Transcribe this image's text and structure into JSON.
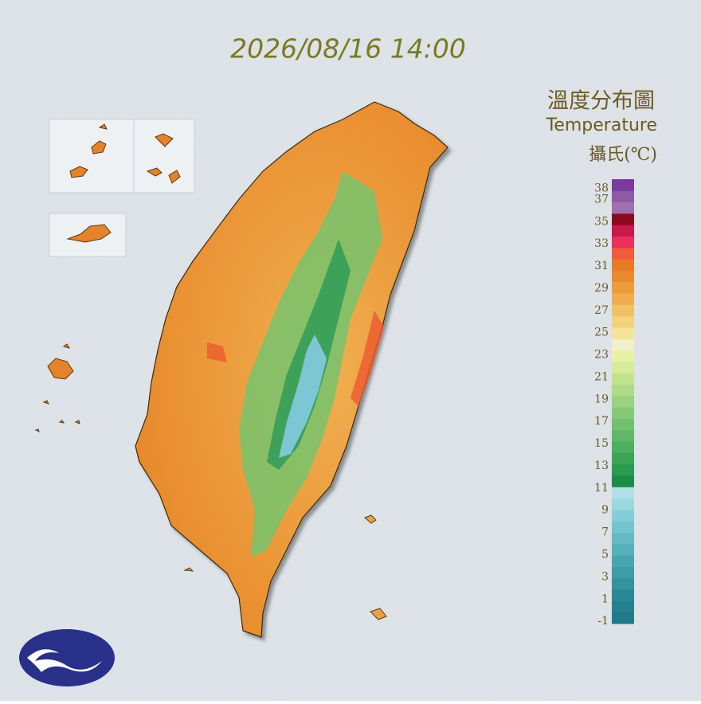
{
  "header": {
    "timestamp": "2026/08/16 14:00"
  },
  "legend": {
    "title": "溫度分布圖",
    "subtitle": "Temperature",
    "unit": "攝氏(℃)",
    "ticks": [
      38,
      37,
      35,
      33,
      31,
      29,
      27,
      25,
      23,
      21,
      19,
      17,
      15,
      13,
      11,
      9,
      7,
      5,
      3,
      1,
      -1
    ],
    "scale_colors": [
      "#1f7a8c",
      "#23808f",
      "#2a8896",
      "#33929e",
      "#3c9ca7",
      "#48a6b0",
      "#55b0ba",
      "#63bac4",
      "#74c4ce",
      "#86ced7",
      "#9ad7df",
      "#aee0e6",
      "#1a8c46",
      "#2a9a4e",
      "#3ba556",
      "#4caf5e",
      "#5fb866",
      "#72c16e",
      "#86c976",
      "#9ad27e",
      "#aedb86",
      "#c2e38e",
      "#d6ec98",
      "#e8f2a6",
      "#f2f0c8",
      "#f5e39a",
      "#f4d27c",
      "#f2c064",
      "#f0ae50",
      "#ee9c3e",
      "#eb8a2e",
      "#e87a28",
      "#ef5a3a",
      "#e8305a",
      "#c8194a",
      "#8c0a1e",
      "#a070b0",
      "#8c5aa8",
      "#7a3aa0"
    ]
  }
}
